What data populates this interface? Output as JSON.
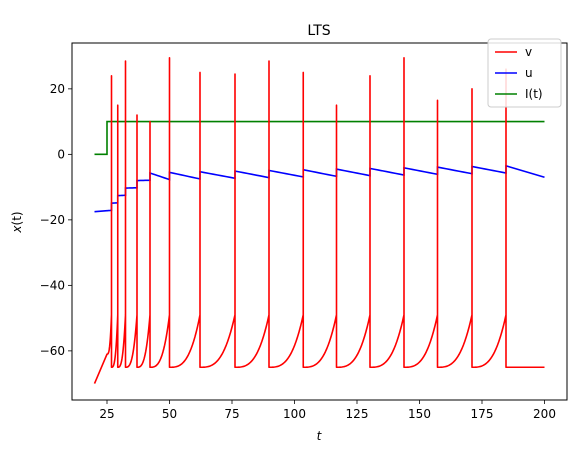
{
  "chart_data": {
    "type": "line",
    "title": "LTS",
    "xlabel": "t",
    "ylabel_main": "x",
    "ylabel_arg": "(t)",
    "xlim": [
      11,
      209
    ],
    "ylim": [
      -75,
      34
    ],
    "xticks": [
      25,
      50,
      75,
      100,
      125,
      150,
      175,
      200
    ],
    "xtick_labels": [
      "25",
      "50",
      "75",
      "100",
      "125",
      "150",
      "175",
      "200"
    ],
    "yticks": [
      -60,
      -40,
      -20,
      0,
      20
    ],
    "ytick_labels": [
      "−60",
      "−40",
      "−20",
      "0",
      "20"
    ],
    "legend_position": "upper-right",
    "grid": false,
    "series": [
      {
        "name": "v",
        "color": "#ff0000",
        "start_t": 20,
        "start_v": -70,
        "step_t": 25,
        "step_v": -61,
        "spike_times": [
          26.8,
          29.3,
          32.4,
          37.0,
          42.2,
          50.0,
          62.2,
          76.2,
          89.8,
          103.5,
          116.8,
          130.2,
          143.8,
          157.2,
          171.0,
          184.6
        ],
        "spike_peaks": [
          24,
          15,
          28.5,
          12,
          10,
          29.5,
          25,
          24.5,
          28.5,
          25,
          15,
          24,
          29.5,
          16.5,
          20,
          26
        ],
        "reset": -65,
        "end_t": 200,
        "end_v": -65
      },
      {
        "name": "u",
        "color": "#0000ff",
        "start_t": 20,
        "start_u": -17.5,
        "step_t": 25,
        "step_u": -17.2,
        "jump": 2.2,
        "end_t": 200,
        "end_u": -6.2
      },
      {
        "name": "I(t)",
        "color": "#008000",
        "points": [
          [
            20,
            0
          ],
          [
            25,
            0
          ],
          [
            25,
            10
          ],
          [
            200,
            10
          ]
        ]
      }
    ]
  }
}
